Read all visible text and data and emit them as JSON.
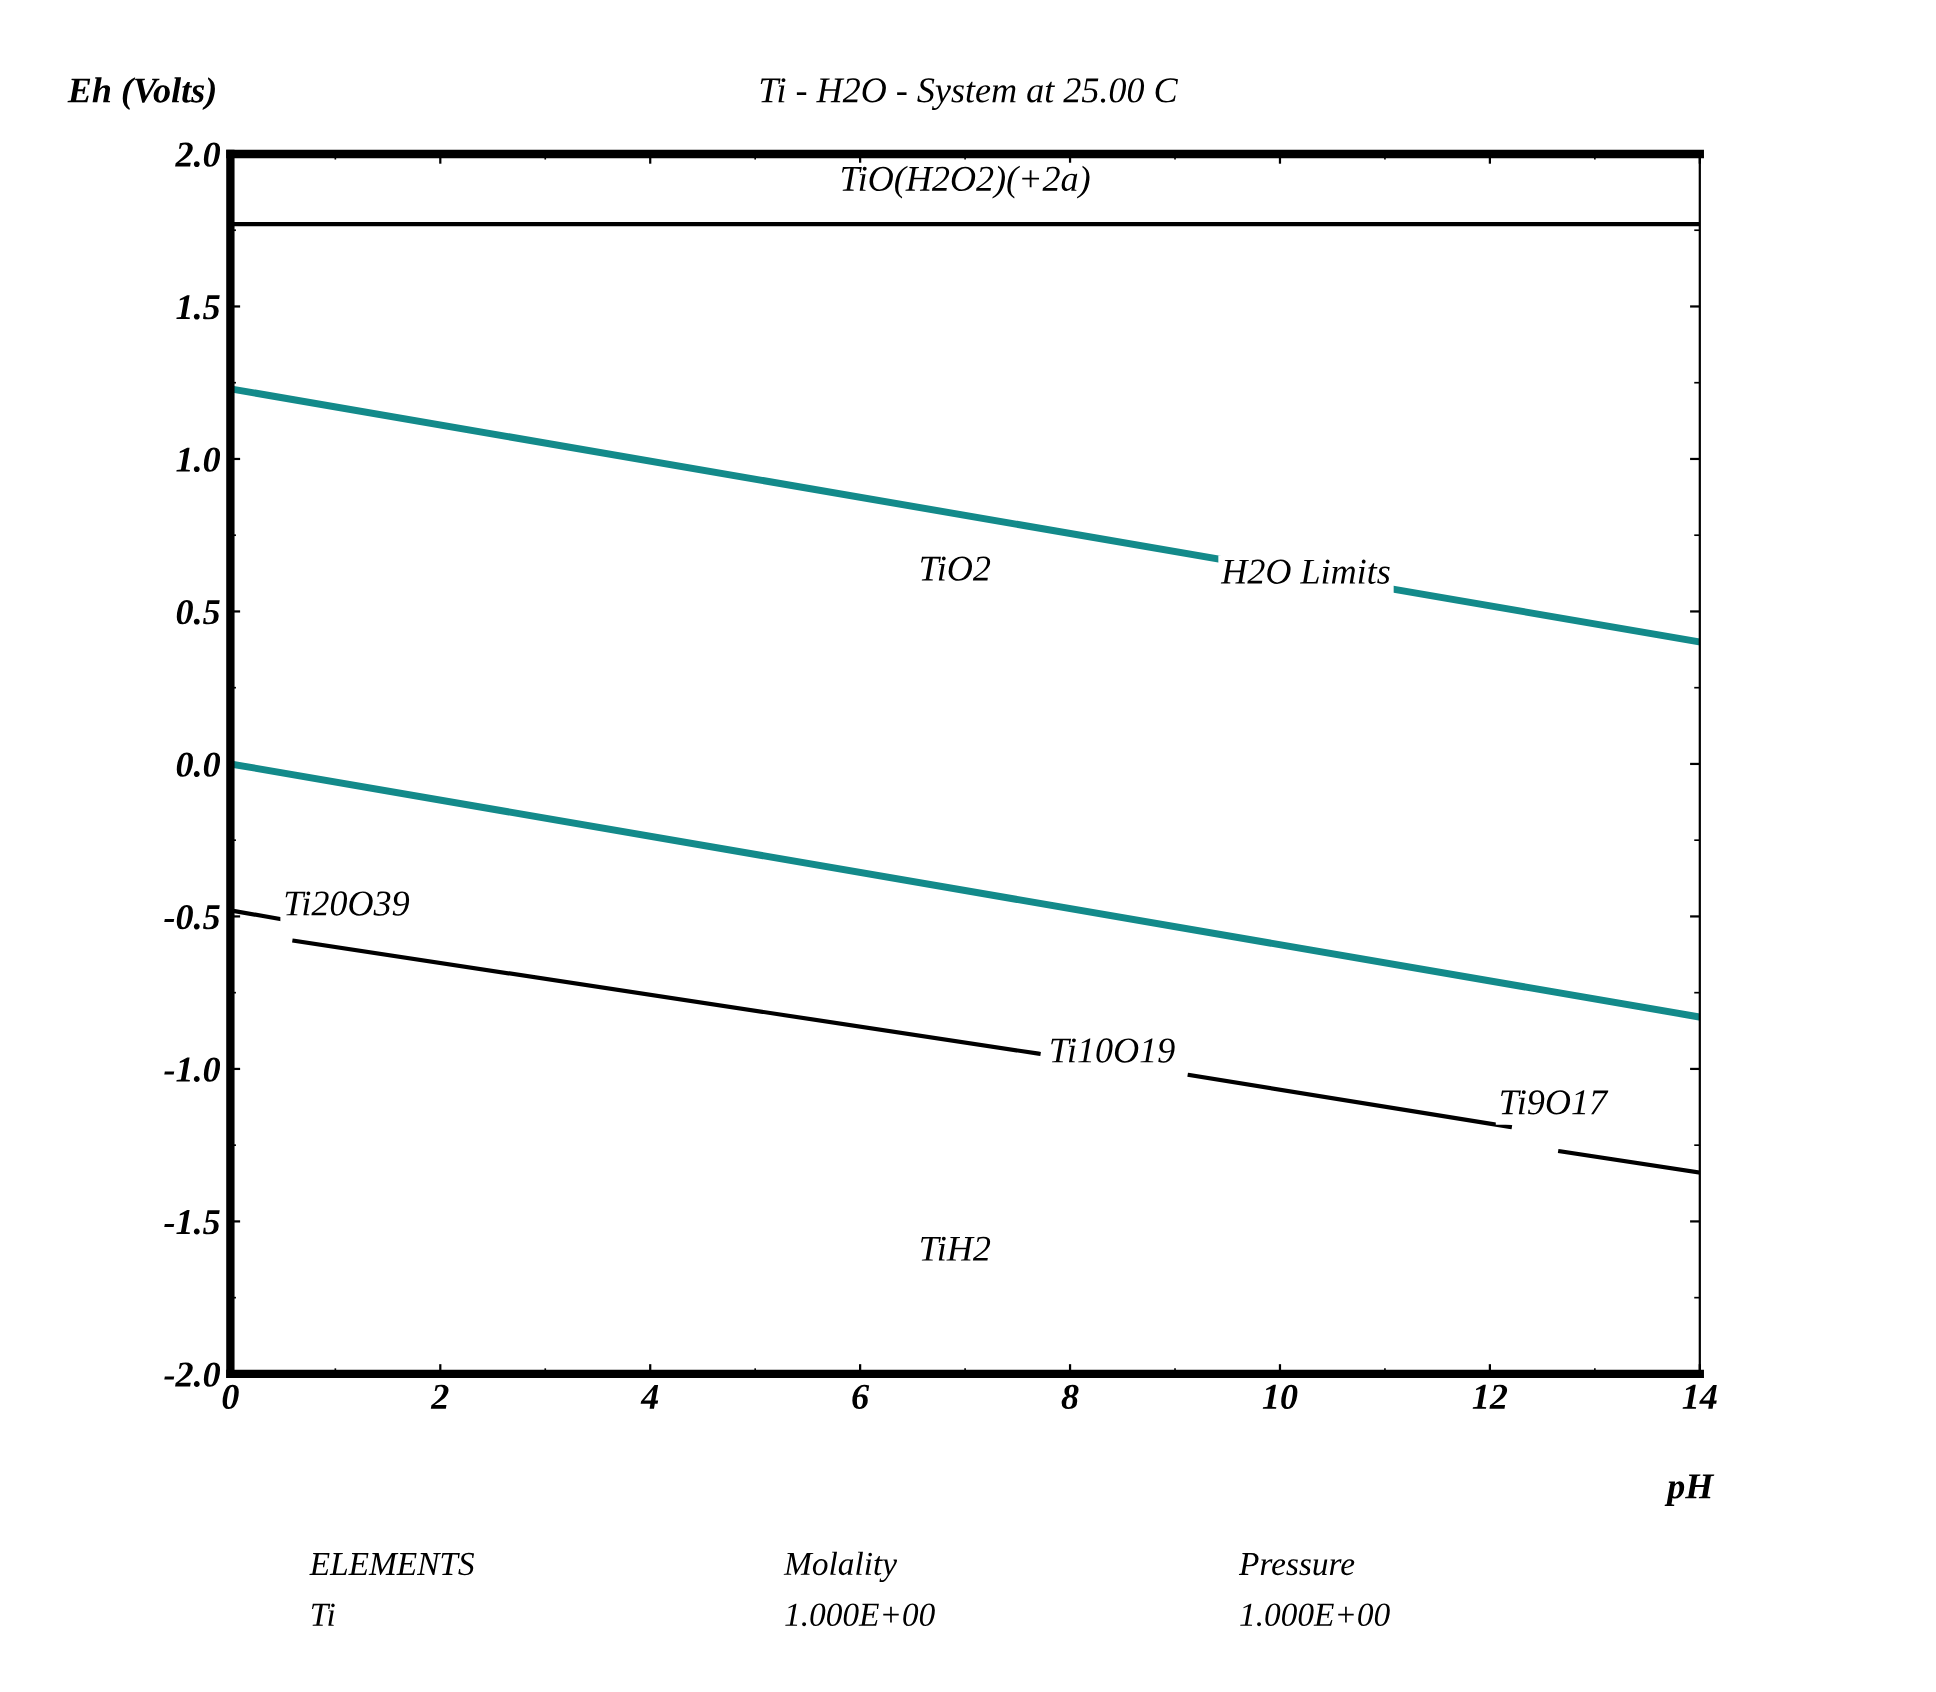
{
  "chart_data": {
    "type": "line",
    "title": "Ti - H2O - System at 25.00 C",
    "xlabel": "pH",
    "ylabel": "Eh (Volts)",
    "xlim": [
      0,
      14
    ],
    "ylim": [
      -2.0,
      2.0
    ],
    "xticks": [
      0,
      2,
      4,
      6,
      8,
      10,
      12,
      14
    ],
    "yticks": [
      {
        "value": -2.0,
        "label": "-2.0"
      },
      {
        "value": -1.5,
        "label": "-1.5"
      },
      {
        "value": -1.0,
        "label": "-1.0"
      },
      {
        "value": -0.5,
        "label": "-0.5"
      },
      {
        "value": 0.0,
        "label": "0.0"
      },
      {
        "value": 0.5,
        "label": "0.5"
      },
      {
        "value": 1.0,
        "label": "1.0"
      },
      {
        "value": 1.5,
        "label": "1.5"
      },
      {
        "value": 2.0,
        "label": "2.0"
      }
    ],
    "grid": false,
    "legend": false,
    "marker": "none",
    "line_style": "solid",
    "series": [
      {
        "color": "#138a8a",
        "x": [
          0,
          14
        ],
        "values": [
          1.23,
          0.4
        ]
      },
      {
        "color": "#138a8a",
        "x": [
          0,
          14
        ],
        "values": [
          0.0,
          -0.83
        ]
      },
      {
        "color": "#000000",
        "x": [
          0,
          14
        ],
        "values": [
          1.77,
          1.77
        ]
      },
      {
        "color": "#000000",
        "x": [
          0,
          0.5,
          0.55,
          0.61,
          7.7,
          7.8,
          9.14,
          12.19,
          12.3,
          12.67,
          14
        ],
        "values": [
          -0.48,
          -0.51,
          null,
          -0.58,
          -0.95,
          null,
          -1.02,
          -1.19,
          null,
          -1.27,
          -1.34
        ]
      }
    ],
    "annotations": [
      "TiO(H2O2)(+2a)",
      "TiO2",
      "H2O Limits",
      "Ti20O39",
      "Ti10O19",
      "Ti9O17",
      "TiH2",
      "ELEMENTS",
      "Molality",
      "Pressure",
      "Ti",
      "1.000E+00",
      "1.000E+00"
    ]
  }
}
